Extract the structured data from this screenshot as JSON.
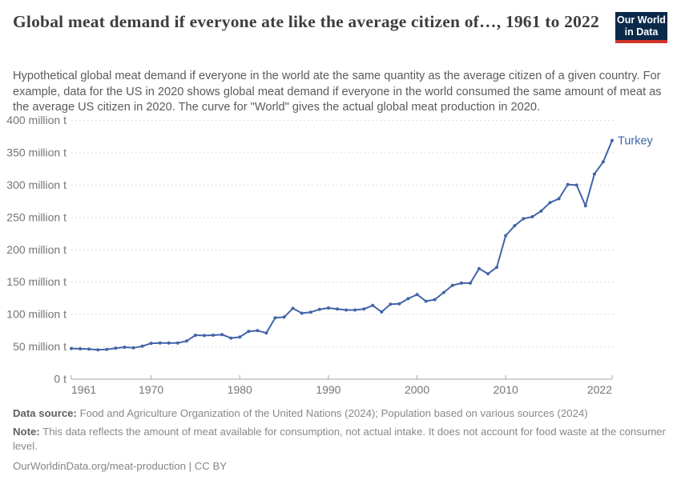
{
  "header": {
    "title": "Global meat demand if everyone ate like the average citizen of…, 1961 to 2022",
    "subtitle": "Hypothetical global meat demand if everyone in the world ate the same quantity as the average citizen of a given country. For example, data for the US in 2020 shows global meat demand if everyone in the world consumed the same amount of meat as the average US citizen in 2020. The curve for \"World\" gives the actual global meat production in 2020.",
    "logo": {
      "line1": "Our World",
      "line2": "in Data",
      "bg_color": "#0b2a4a",
      "accent_color": "#d0342a"
    }
  },
  "chart_data": {
    "type": "line",
    "title": "Global meat demand if everyone ate like the average citizen of…, 1961 to 2022",
    "xlabel": "",
    "ylabel": "",
    "x_range": [
      1961,
      2022
    ],
    "y_range": [
      0,
      400
    ],
    "grid": "horizontal dashed",
    "legend_position": "end-of-line label",
    "yticks": [
      {
        "value": 0,
        "label": "0 t"
      },
      {
        "value": 50,
        "label": "50 million t"
      },
      {
        "value": 100,
        "label": "100 million t"
      },
      {
        "value": 150,
        "label": "150 million t"
      },
      {
        "value": 200,
        "label": "200 million t"
      },
      {
        "value": 250,
        "label": "250 million t"
      },
      {
        "value": 300,
        "label": "300 million t"
      },
      {
        "value": 350,
        "label": "350 million t"
      },
      {
        "value": 400,
        "label": "400 million t"
      }
    ],
    "xticks": [
      {
        "value": 1961,
        "label": "1961"
      },
      {
        "value": 1970,
        "label": "1970"
      },
      {
        "value": 1980,
        "label": "1980"
      },
      {
        "value": 1990,
        "label": "1990"
      },
      {
        "value": 2000,
        "label": "2000"
      },
      {
        "value": 2010,
        "label": "2010"
      },
      {
        "value": 2022,
        "label": "2022"
      }
    ],
    "series": [
      {
        "name": "Turkey",
        "color": "#4264a8",
        "years": [
          1961,
          1962,
          1963,
          1964,
          1965,
          1966,
          1967,
          1968,
          1969,
          1970,
          1971,
          1972,
          1973,
          1974,
          1975,
          1976,
          1977,
          1978,
          1979,
          1980,
          1981,
          1982,
          1983,
          1984,
          1985,
          1986,
          1987,
          1988,
          1989,
          1990,
          1991,
          1992,
          1993,
          1994,
          1995,
          1996,
          1997,
          1998,
          1999,
          2000,
          2001,
          2002,
          2003,
          2004,
          2005,
          2006,
          2007,
          2008,
          2009,
          2010,
          2011,
          2012,
          2013,
          2014,
          2015,
          2016,
          2017,
          2018,
          2019,
          2020,
          2021,
          2022
        ],
        "values": [
          47.5,
          47,
          46.5,
          45.5,
          46,
          48,
          49.5,
          48.5,
          51,
          55.5,
          56,
          56,
          56,
          59,
          68,
          67.5,
          68,
          69,
          63.5,
          65,
          74,
          75,
          71.5,
          95,
          96,
          109.5,
          102,
          103.5,
          108,
          110,
          108.5,
          107,
          107,
          108.5,
          114,
          104,
          116,
          116.5,
          124.5,
          131,
          120.5,
          123,
          134,
          145,
          148.5,
          148.5,
          171,
          163,
          173,
          222,
          237,
          248,
          251,
          260,
          273,
          279,
          301,
          300,
          268,
          317,
          336,
          369
        ]
      }
    ],
    "colors": {
      "line": "#4264a8",
      "grid": "#dcdcdc",
      "axis": "#a6a6a6",
      "tick_label": "#757575",
      "end_label": "#3d64a5"
    },
    "units": "million t"
  },
  "footer": {
    "data_source_label": "Data source:",
    "data_source_text": "Food and Agriculture Organization of the United Nations (2024); Population based on various sources (2024)",
    "note_label": "Note:",
    "note_text": "This data reflects the amount of meat available for consumption, not actual intake. It does not account for food waste at the consumer level.",
    "link_text": "OurWorldinData.org/meat-production | CC BY"
  }
}
